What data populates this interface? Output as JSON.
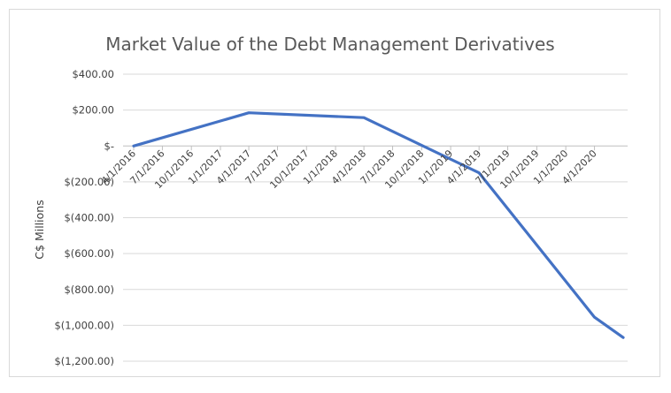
{
  "chart_data": {
    "type": "line",
    "title": "Market Value of the Debt Management Derivatives",
    "xlabel": "",
    "ylabel": "C$ Millions",
    "ylim": [
      -1200,
      400
    ],
    "yticks": [
      400,
      200,
      0,
      -200,
      -400,
      -600,
      -800,
      -1000,
      -1200
    ],
    "ytick_labels": [
      "$400.00",
      "$200.00",
      "$-",
      "$(200.00)",
      "$(400.00)",
      "$(600.00)",
      "$(800.00)",
      "$(1,000.00)",
      "$(1,200.00)"
    ],
    "x_tick_labels": [
      "4/1/2016",
      "7/1/2016",
      "10/1/2016",
      "1/1/2017",
      "4/1/2017",
      "7/1/2017",
      "10/1/2017",
      "1/1/2018",
      "4/1/2018",
      "7/1/2018",
      "10/1/2018",
      "1/1/2019",
      "4/1/2019",
      "7/1/2019",
      "10/1/2019",
      "1/1/2020",
      "4/1/2020"
    ],
    "grid": true,
    "legend": "none",
    "series": [
      {
        "color": "#4472c4",
        "points": [
          {
            "x": "3/31/2016",
            "y": 0
          },
          {
            "x": "3/31/2017",
            "y": 185
          },
          {
            "x": "3/31/2018",
            "y": 158
          },
          {
            "x": "3/31/2019",
            "y": -150
          },
          {
            "x": "3/31/2020",
            "y": -955
          },
          {
            "x": "6/30/2020",
            "y": -1068
          }
        ]
      }
    ]
  }
}
